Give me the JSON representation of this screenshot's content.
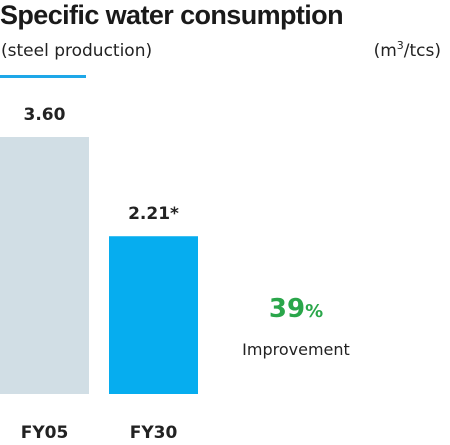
{
  "chart_data": {
    "type": "bar",
    "title": "Specific water consumption",
    "subtitle": "(steel production)",
    "unit_prefix": "(m",
    "unit_sup": "3",
    "unit_suffix": "/tcs)",
    "categories": [
      "FY05",
      "FY30"
    ],
    "values": [
      3.6,
      2.21
    ],
    "value_labels": [
      "3.60",
      "2.21*"
    ],
    "bar_colors": [
      "#d1dee5",
      "#06adef"
    ],
    "ylim": [
      0,
      3.6
    ],
    "grid": false,
    "legend": "none"
  },
  "improvement": {
    "value": "39",
    "suffix": "%",
    "label": "Improvement",
    "color": "#2aa64a"
  },
  "accent_color": "#1ea7e8"
}
